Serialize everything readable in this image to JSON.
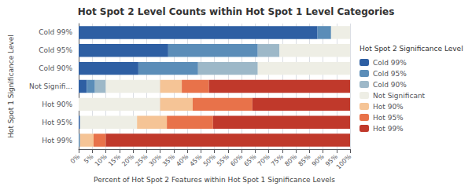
{
  "chart_data": {
    "type": "bar",
    "orientation": "horizontal",
    "stacked": true,
    "title": "Hot Spot 2 Level Counts within Hot Spot 1 Level Categories",
    "xlabel": "Percent of Hot Spot 2 Features within Hot Spot 1 Significance Levels",
    "ylabel": "Hot Spot 1 Significance Level",
    "legend_title": "Hot Spot 2 Significance Level",
    "legend": "right",
    "grid": true,
    "categories": [
      "Cold 99%",
      "Cold 95%",
      "Cold 90%",
      "Not Signifi...",
      "Hot 90%",
      "Hot 95%",
      "Hot 99%"
    ],
    "series": [
      {
        "name": "Cold 99%",
        "color": "#2E5FA3",
        "values": [
          88.0,
          33.0,
          22.0,
          3.0,
          0.0,
          0.5,
          0.0
        ]
      },
      {
        "name": "Cold 95%",
        "color": "#5B8DB8",
        "values": [
          5.0,
          33.0,
          22.0,
          3.0,
          0.0,
          0.0,
          0.5
        ]
      },
      {
        "name": "Cold 90%",
        "color": "#9DB8C8",
        "values": [
          0.0,
          8.0,
          22.0,
          4.0,
          0.0,
          0.0,
          0.0
        ]
      },
      {
        "name": "Not Significant",
        "color": "#EEEEE5",
        "values": [
          7.0,
          26.0,
          34.0,
          20.0,
          30.0,
          21.0,
          0.0
        ]
      },
      {
        "name": "Hot 90%",
        "color": "#F5C496",
        "values": [
          0.0,
          0.0,
          0.0,
          8.0,
          12.0,
          11.0,
          5.0
        ]
      },
      {
        "name": "Hot 95%",
        "color": "#E8724A",
        "values": [
          0.0,
          0.0,
          0.0,
          10.0,
          22.0,
          17.0,
          4.5
        ]
      },
      {
        "name": "Hot 99%",
        "color": "#C0392B",
        "values": [
          0.0,
          0.0,
          0.0,
          52.0,
          36.0,
          50.5,
          90.0
        ]
      }
    ],
    "xlim": [
      0,
      100
    ],
    "xticks": [
      {
        "value": 0,
        "label": "0%"
      },
      {
        "value": 5,
        "label": "5%"
      },
      {
        "value": 10,
        "label": "10%"
      },
      {
        "value": 15,
        "label": "15%"
      },
      {
        "value": 20,
        "label": "20%"
      },
      {
        "value": 25,
        "label": "25%"
      },
      {
        "value": 30,
        "label": "30%"
      },
      {
        "value": 35,
        "label": "35%"
      },
      {
        "value": 40,
        "label": "40%"
      },
      {
        "value": 45,
        "label": "45%"
      },
      {
        "value": 50,
        "label": "50%"
      },
      {
        "value": 55,
        "label": "55%"
      },
      {
        "value": 60,
        "label": "60%"
      },
      {
        "value": 65,
        "label": "65%"
      },
      {
        "value": 70,
        "label": "70%"
      },
      {
        "value": 75,
        "label": "75%"
      },
      {
        "value": 80,
        "label": "80%"
      },
      {
        "value": 85,
        "label": "85%"
      },
      {
        "value": 90,
        "label": "90%"
      },
      {
        "value": 95,
        "label": "95%"
      },
      {
        "value": 100,
        "label": "100%"
      }
    ]
  }
}
